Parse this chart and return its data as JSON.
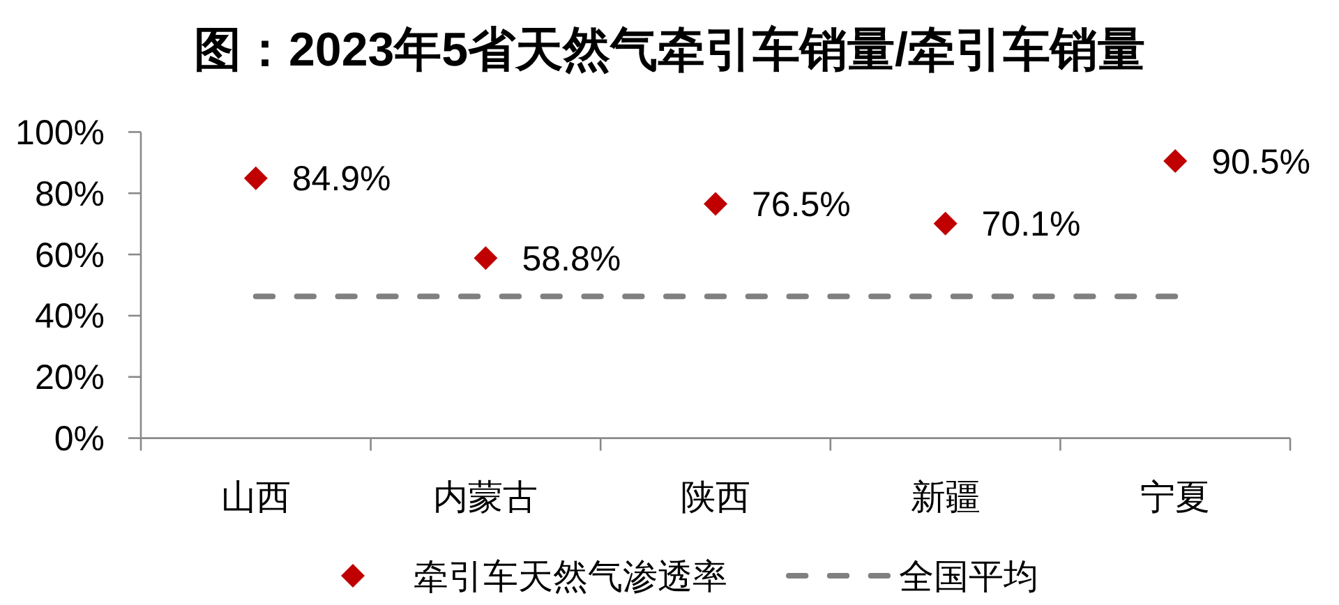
{
  "chart_data": {
    "type": "scatter",
    "title": "图：2023年5省天然气牵引车销量/牵引车销量",
    "categories": [
      "山西",
      "内蒙古",
      "陕西",
      "新疆",
      "宁夏"
    ],
    "series": [
      {
        "name": "牵引车天然气渗透率",
        "color": "#c00000",
        "marker": "diamond",
        "values": [
          84.9,
          58.8,
          76.5,
          70.1,
          90.5
        ],
        "value_labels": [
          "84.9%",
          "58.8%",
          "76.5%",
          "70.1%",
          "90.5%"
        ]
      },
      {
        "name": "全国平均",
        "type": "line",
        "color": "#808080",
        "line_style": "dashed",
        "marker": "none",
        "values": [
          46.3,
          46.3,
          46.3,
          46.3,
          46.3
        ]
      }
    ],
    "ylim": [
      0,
      100
    ],
    "yticks": [
      {
        "value": 0,
        "label": "0%"
      },
      {
        "value": 20,
        "label": "20%"
      },
      {
        "value": 40,
        "label": "40%"
      },
      {
        "value": 60,
        "label": "60%"
      },
      {
        "value": 80,
        "label": "80%"
      },
      {
        "value": 100,
        "label": "100%"
      }
    ],
    "legend": "bottom"
  }
}
